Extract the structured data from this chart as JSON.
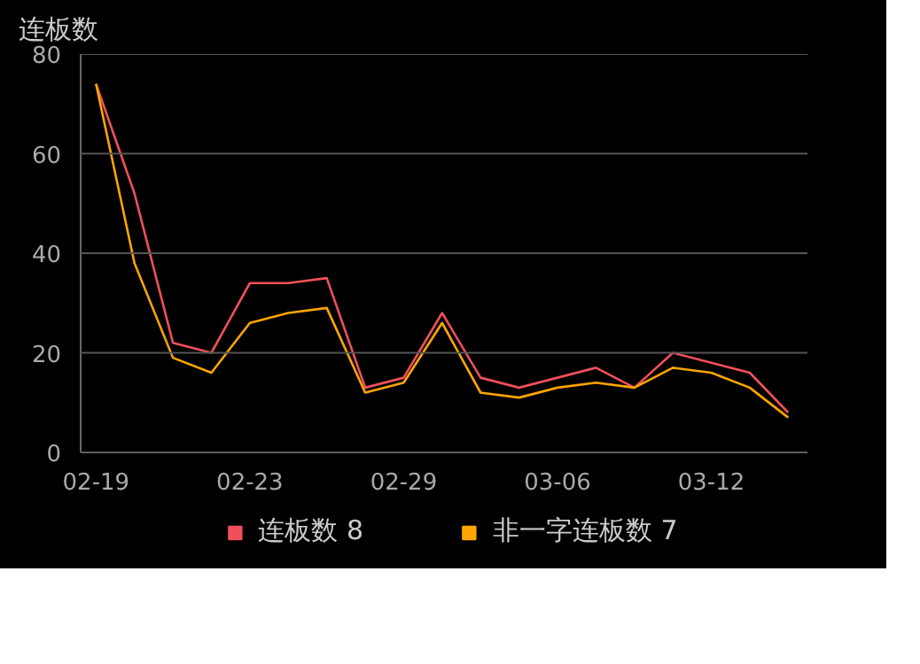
{
  "chart_data": {
    "type": "line",
    "title": "连板数",
    "categories": [
      "02-19",
      null,
      null,
      null,
      "02-23",
      null,
      null,
      null,
      "02-29",
      null,
      null,
      null,
      "03-06",
      null,
      null,
      null,
      "03-12",
      null,
      null
    ],
    "series": [
      {
        "name": "连板数 8",
        "color": "#f0505a",
        "values": [
          74,
          52,
          22,
          20,
          34,
          34,
          35,
          13,
          15,
          28,
          15,
          13,
          15,
          17,
          13,
          20,
          18,
          16,
          8
        ]
      },
      {
        "name": "非一字连板数 7",
        "color": "#ffa500",
        "values": [
          74,
          38,
          19,
          16,
          26,
          28,
          29,
          12,
          14,
          26,
          12,
          11,
          13,
          14,
          13,
          17,
          16,
          13,
          7
        ]
      }
    ],
    "ylim": [
      0,
      80
    ],
    "yticks": [
      0,
      20,
      40,
      60,
      80
    ],
    "grid": "y",
    "legend": "bottom",
    "marker": "none"
  }
}
